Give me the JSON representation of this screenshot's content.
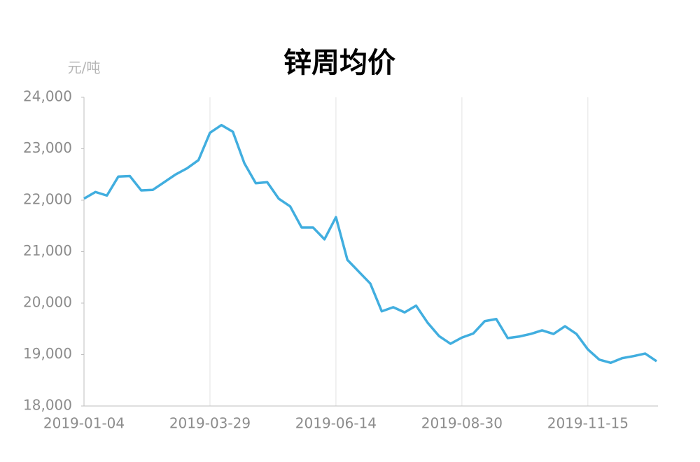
{
  "chart_data": {
    "type": "line",
    "title": "锌周均价",
    "y_unit": "元/吨",
    "categories": [
      "2019-01-04",
      null,
      null,
      null,
      null,
      null,
      null,
      null,
      null,
      null,
      null,
      "2019-03-29",
      null,
      null,
      null,
      null,
      null,
      null,
      null,
      null,
      null,
      null,
      "2019-06-14",
      null,
      null,
      null,
      null,
      null,
      null,
      null,
      null,
      null,
      null,
      "2019-08-30",
      null,
      null,
      null,
      null,
      null,
      null,
      null,
      null,
      null,
      null,
      "2019-11-15",
      null,
      null,
      null,
      null,
      null,
      null
    ],
    "series": [
      {
        "name": "锌周均价",
        "color": "#41aedf",
        "values": [
          22030,
          22160,
          22090,
          22460,
          22470,
          22190,
          22200,
          22350,
          22500,
          22620,
          22780,
          23310,
          23460,
          23330,
          22720,
          22330,
          22350,
          22030,
          21880,
          21470,
          21470,
          21240,
          21670,
          20840,
          20610,
          20380,
          19840,
          19920,
          19820,
          19950,
          19620,
          19360,
          19210,
          19330,
          19410,
          19650,
          19690,
          19320,
          19350,
          19400,
          19470,
          19400,
          19550,
          19400,
          19100,
          18900,
          18840,
          18930,
          18970,
          19020,
          18870
        ]
      }
    ],
    "ylim": [
      18000,
      24000
    ],
    "yticks": [
      {
        "value": 18000,
        "label": "18,000"
      },
      {
        "value": 19000,
        "label": "19,000"
      },
      {
        "value": 20000,
        "label": "20,000"
      },
      {
        "value": 21000,
        "label": "21,000"
      },
      {
        "value": 22000,
        "label": "22,000"
      },
      {
        "value": 23000,
        "label": "23,000"
      },
      {
        "value": 24000,
        "label": "24,000"
      }
    ],
    "grid": true
  }
}
